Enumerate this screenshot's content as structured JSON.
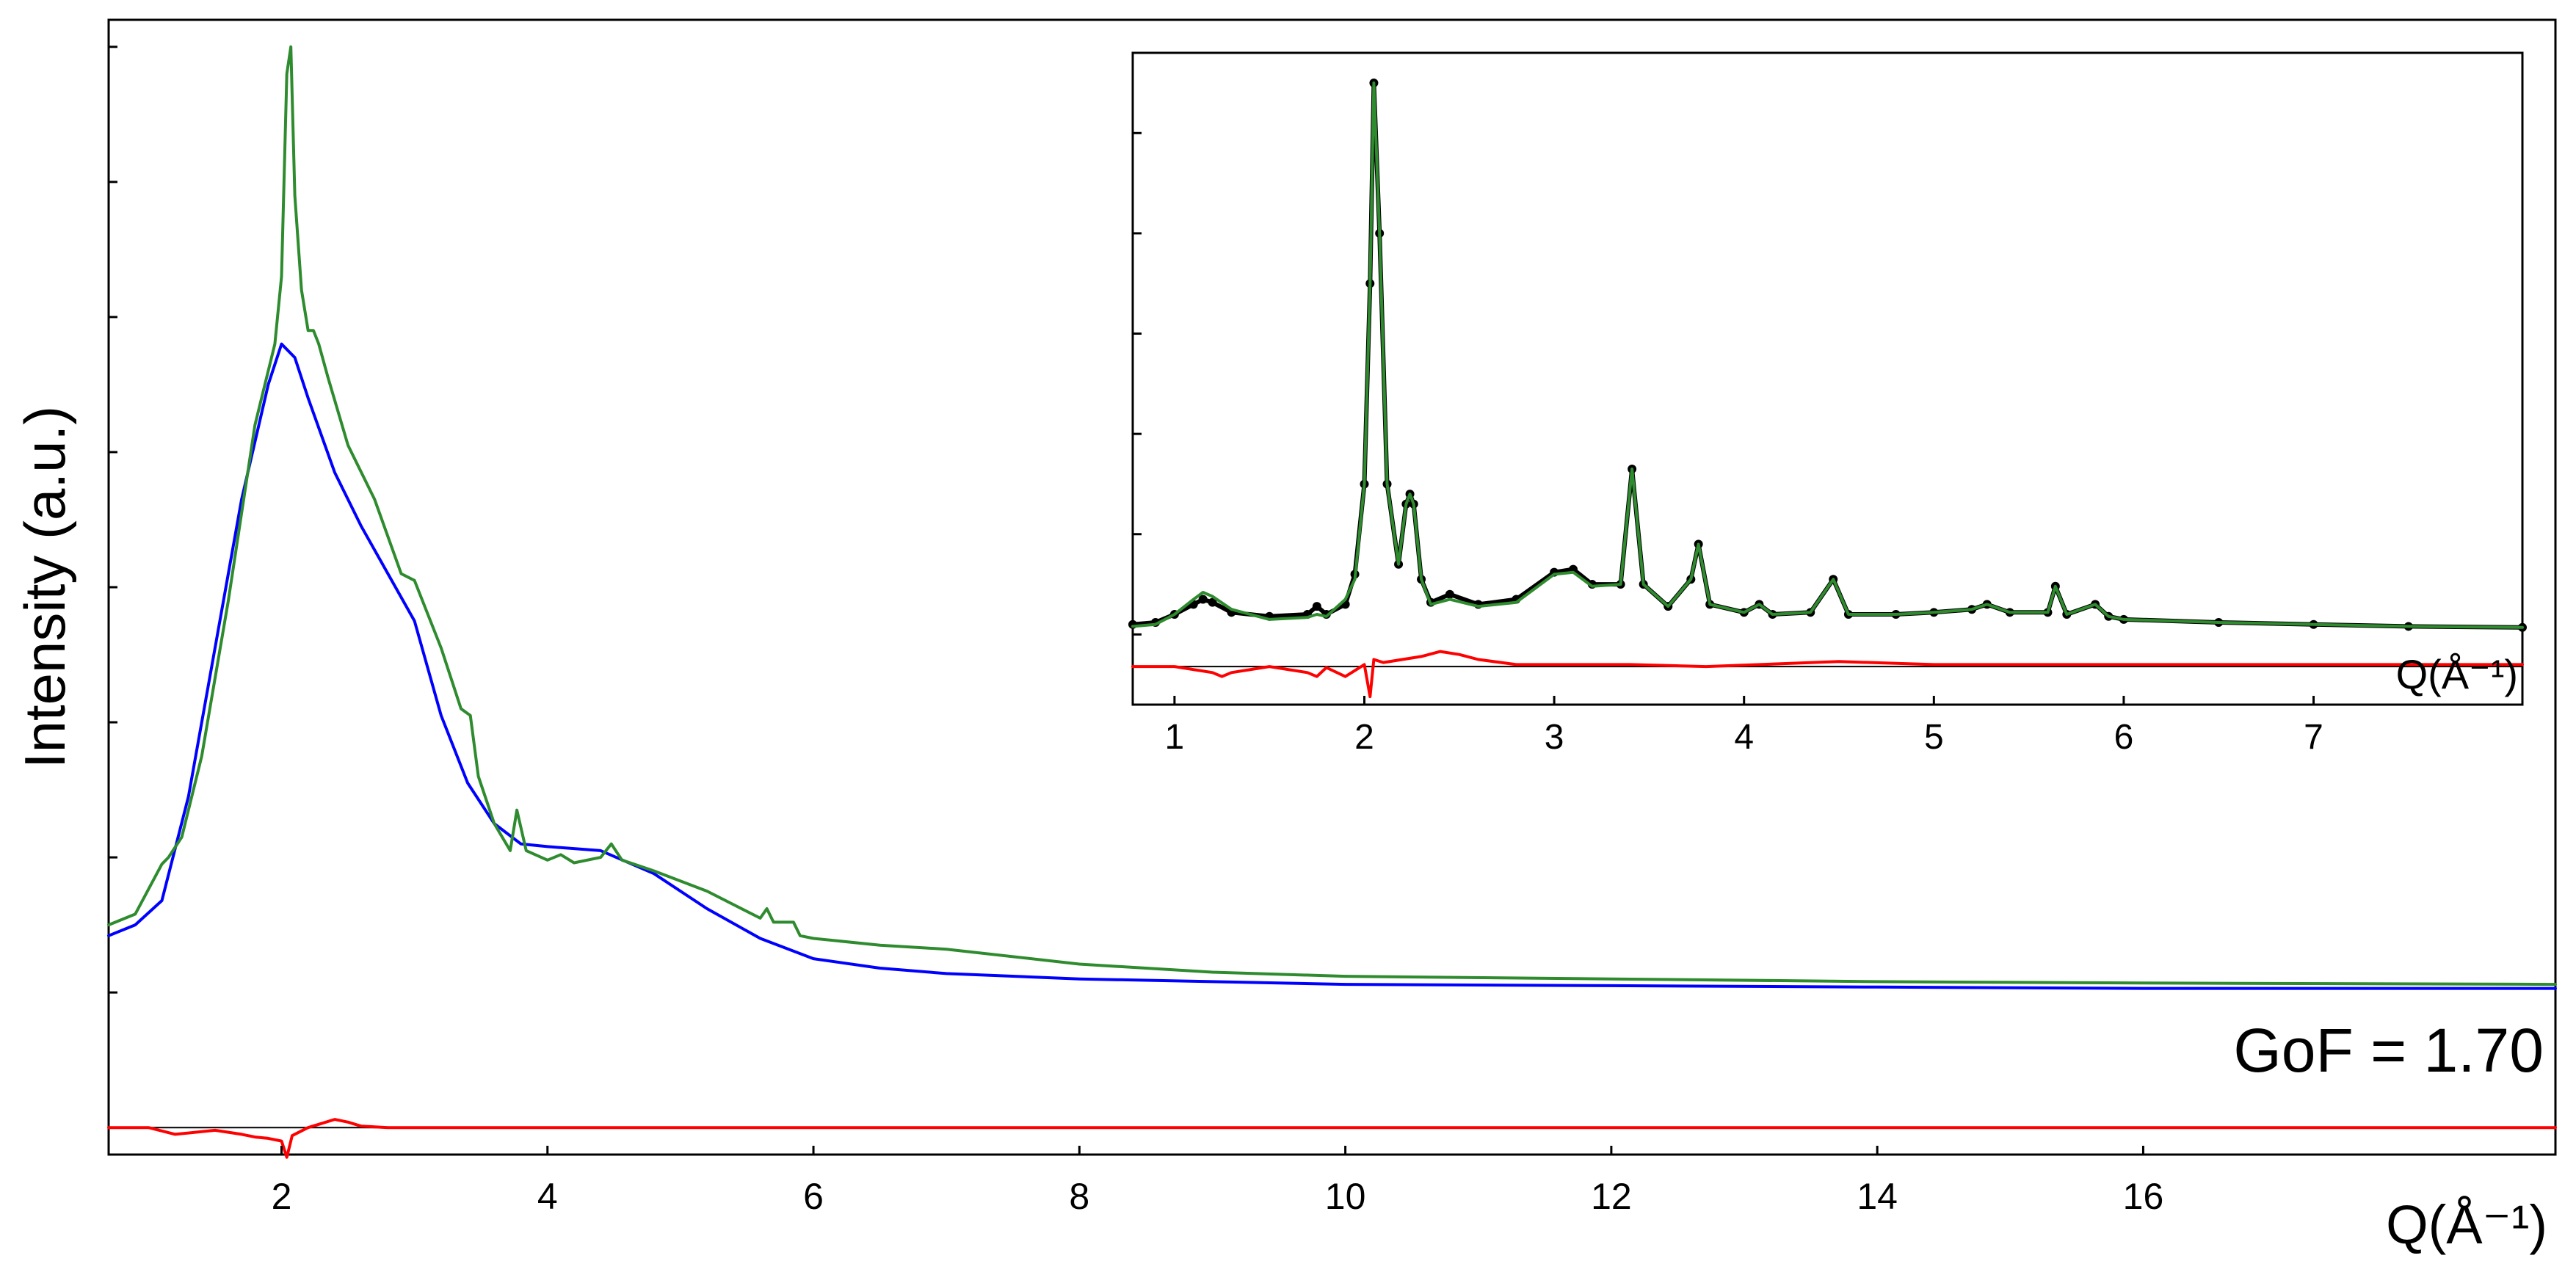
{
  "chart_data": [
    {
      "type": "line",
      "panel": "main",
      "xlabel": "Q(Å⁻¹)",
      "ylabel": "Intensity (a.u.)",
      "xlim": [
        0.7,
        19.1
      ],
      "ylim": [
        -1.2,
        7.2
      ],
      "x_ticks": [
        2,
        4,
        6,
        8,
        10,
        12,
        14,
        16
      ],
      "y_ticks_labeled": false,
      "y_tick_values": [
        0,
        1,
        2,
        3,
        4,
        5,
        6,
        7
      ],
      "annotation": "GoF = 1.70",
      "grid": false,
      "series": [
        {
          "color": "#0000ff",
          "style": "line",
          "x": [
            0.7,
            0.9,
            1.1,
            1.3,
            1.5,
            1.7,
            1.9,
            2.0,
            2.1,
            2.2,
            2.4,
            2.6,
            2.8,
            3.0,
            3.2,
            3.4,
            3.6,
            3.8,
            4.0,
            4.4,
            4.8,
            5.2,
            5.6,
            6.0,
            6.5,
            7.0,
            8.0,
            9.0,
            10.0,
            12.0,
            14.0,
            16.0,
            19.1
          ],
          "y": [
            0.42,
            0.5,
            0.68,
            1.45,
            2.55,
            3.65,
            4.5,
            4.8,
            4.7,
            4.4,
            3.85,
            3.45,
            3.1,
            2.75,
            2.05,
            1.55,
            1.25,
            1.1,
            1.08,
            1.05,
            0.88,
            0.62,
            0.4,
            0.25,
            0.18,
            0.14,
            0.1,
            0.08,
            0.06,
            0.05,
            0.04,
            0.03,
            0.03
          ]
        },
        {
          "color": "#2e8b2e",
          "style": "line",
          "x": [
            0.7,
            0.9,
            1.1,
            1.15,
            1.25,
            1.4,
            1.6,
            1.8,
            1.95,
            2.0,
            2.04,
            2.07,
            2.1,
            2.15,
            2.2,
            2.24,
            2.28,
            2.35,
            2.5,
            2.7,
            2.9,
            3.0,
            3.2,
            3.35,
            3.42,
            3.48,
            3.6,
            3.72,
            3.77,
            3.84,
            4.0,
            4.1,
            4.2,
            4.4,
            4.48,
            4.56,
            4.8,
            5.2,
            5.6,
            5.65,
            5.7,
            5.85,
            5.9,
            6.0,
            6.5,
            7.0,
            8.0,
            9.0,
            10.0,
            12.0,
            14.0,
            16.0,
            19.1
          ],
          "y": [
            0.5,
            0.58,
            0.95,
            1.0,
            1.15,
            1.75,
            2.9,
            4.2,
            4.8,
            5.3,
            6.8,
            7.0,
            5.9,
            5.2,
            4.9,
            4.9,
            4.8,
            4.55,
            4.05,
            3.65,
            3.1,
            3.05,
            2.55,
            2.1,
            2.05,
            1.6,
            1.25,
            1.05,
            1.35,
            1.05,
            0.98,
            1.02,
            0.96,
            1.0,
            1.1,
            0.98,
            0.9,
            0.75,
            0.55,
            0.62,
            0.52,
            0.52,
            0.42,
            0.4,
            0.35,
            0.32,
            0.21,
            0.15,
            0.12,
            0.1,
            0.08,
            0.07,
            0.06
          ]
        },
        {
          "color": "#ff0000",
          "style": "line",
          "x": [
            0.7,
            1.0,
            1.2,
            1.5,
            1.7,
            1.8,
            1.9,
            2.0,
            2.04,
            2.08,
            2.2,
            2.3,
            2.4,
            2.5,
            2.6,
            2.8,
            3.0,
            3.5,
            4.0,
            5.0,
            6.0,
            8.0,
            10.0,
            12.0,
            14.0,
            16.0,
            19.1
          ],
          "y": [
            -1.0,
            -1.0,
            -1.05,
            -1.02,
            -1.05,
            -1.07,
            -1.08,
            -1.1,
            -1.22,
            -1.06,
            -1.0,
            -0.97,
            -0.94,
            -0.96,
            -0.99,
            -1.0,
            -1.0,
            -1.0,
            -1.0,
            -1.0,
            -1.0,
            -1.0,
            -1.0,
            -1.0,
            -1.0,
            -1.0,
            -1.0
          ]
        }
      ]
    },
    {
      "type": "scatter",
      "panel": "inset",
      "xlabel": "Q(Å⁻¹)",
      "xlim": [
        0.78,
        8.1
      ],
      "ylim": [
        -0.7,
        5.8
      ],
      "x_ticks": [
        1,
        2,
        3,
        4,
        5,
        6,
        7
      ],
      "y_ticks_labeled": false,
      "y_tick_values": [
        0,
        1,
        2,
        3,
        4,
        5
      ],
      "grid": false,
      "series": [
        {
          "color": "#000000",
          "style": "markers",
          "x": [
            0.78,
            0.9,
            1.0,
            1.1,
            1.15,
            1.2,
            1.3,
            1.5,
            1.7,
            1.75,
            1.8,
            1.9,
            1.95,
            2.0,
            2.03,
            2.05,
            2.08,
            2.12,
            2.18,
            2.22,
            2.24,
            2.26,
            2.3,
            2.35,
            2.45,
            2.6,
            2.8,
            3.0,
            3.1,
            3.2,
            3.35,
            3.41,
            3.47,
            3.6,
            3.72,
            3.76,
            3.82,
            4.0,
            4.08,
            4.15,
            4.35,
            4.47,
            4.55,
            4.8,
            5.0,
            5.2,
            5.28,
            5.4,
            5.6,
            5.64,
            5.7,
            5.85,
            5.92,
            6.0,
            6.5,
            7.0,
            7.5,
            8.1
          ],
          "y": [
            0.1,
            0.12,
            0.2,
            0.3,
            0.35,
            0.32,
            0.22,
            0.18,
            0.2,
            0.28,
            0.2,
            0.3,
            0.6,
            1.5,
            3.5,
            5.5,
            4.0,
            1.5,
            0.7,
            1.3,
            1.4,
            1.3,
            0.55,
            0.32,
            0.4,
            0.3,
            0.35,
            0.62,
            0.65,
            0.5,
            0.5,
            1.65,
            0.5,
            0.28,
            0.55,
            0.9,
            0.3,
            0.22,
            0.3,
            0.2,
            0.22,
            0.55,
            0.2,
            0.2,
            0.22,
            0.25,
            0.3,
            0.22,
            0.22,
            0.48,
            0.2,
            0.3,
            0.18,
            0.15,
            0.12,
            0.1,
            0.08,
            0.07
          ]
        },
        {
          "color": "#2e8b2e",
          "style": "line",
          "x": [
            0.78,
            0.9,
            1.0,
            1.1,
            1.15,
            1.2,
            1.3,
            1.5,
            1.7,
            1.75,
            1.8,
            1.9,
            1.95,
            2.0,
            2.03,
            2.05,
            2.08,
            2.12,
            2.18,
            2.22,
            2.24,
            2.26,
            2.3,
            2.35,
            2.45,
            2.6,
            2.8,
            3.0,
            3.1,
            3.2,
            3.35,
            3.41,
            3.47,
            3.6,
            3.72,
            3.76,
            3.82,
            4.0,
            4.08,
            4.15,
            4.35,
            4.47,
            4.55,
            4.8,
            5.0,
            5.2,
            5.28,
            5.4,
            5.6,
            5.64,
            5.7,
            5.85,
            5.92,
            6.0,
            6.5,
            7.0,
            7.5,
            8.1
          ],
          "y": [
            0.08,
            0.1,
            0.2,
            0.35,
            0.42,
            0.38,
            0.25,
            0.15,
            0.17,
            0.2,
            0.18,
            0.35,
            0.55,
            1.5,
            3.5,
            5.5,
            4.0,
            1.5,
            0.7,
            1.3,
            1.4,
            1.3,
            0.55,
            0.3,
            0.35,
            0.28,
            0.32,
            0.6,
            0.62,
            0.48,
            0.5,
            1.65,
            0.5,
            0.28,
            0.55,
            0.9,
            0.3,
            0.22,
            0.3,
            0.2,
            0.22,
            0.55,
            0.2,
            0.2,
            0.22,
            0.25,
            0.3,
            0.22,
            0.22,
            0.48,
            0.2,
            0.3,
            0.18,
            0.15,
            0.12,
            0.1,
            0.08,
            0.07
          ]
        },
        {
          "color": "#ff0000",
          "style": "line",
          "x": [
            0.78,
            1.0,
            1.2,
            1.25,
            1.3,
            1.5,
            1.7,
            1.75,
            1.8,
            1.9,
            1.95,
            2.0,
            2.03,
            2.05,
            2.1,
            2.2,
            2.3,
            2.4,
            2.5,
            2.6,
            2.8,
            3.0,
            3.4,
            3.8,
            4.5,
            5.0,
            6.0,
            7.0,
            8.1
          ],
          "y": [
            -0.32,
            -0.32,
            -0.38,
            -0.42,
            -0.38,
            -0.32,
            -0.38,
            -0.42,
            -0.33,
            -0.42,
            -0.36,
            -0.3,
            -0.62,
            -0.25,
            -0.28,
            -0.25,
            -0.22,
            -0.17,
            -0.2,
            -0.25,
            -0.3,
            -0.3,
            -0.3,
            -0.32,
            -0.27,
            -0.3,
            -0.3,
            -0.3,
            -0.3
          ]
        }
      ]
    }
  ]
}
